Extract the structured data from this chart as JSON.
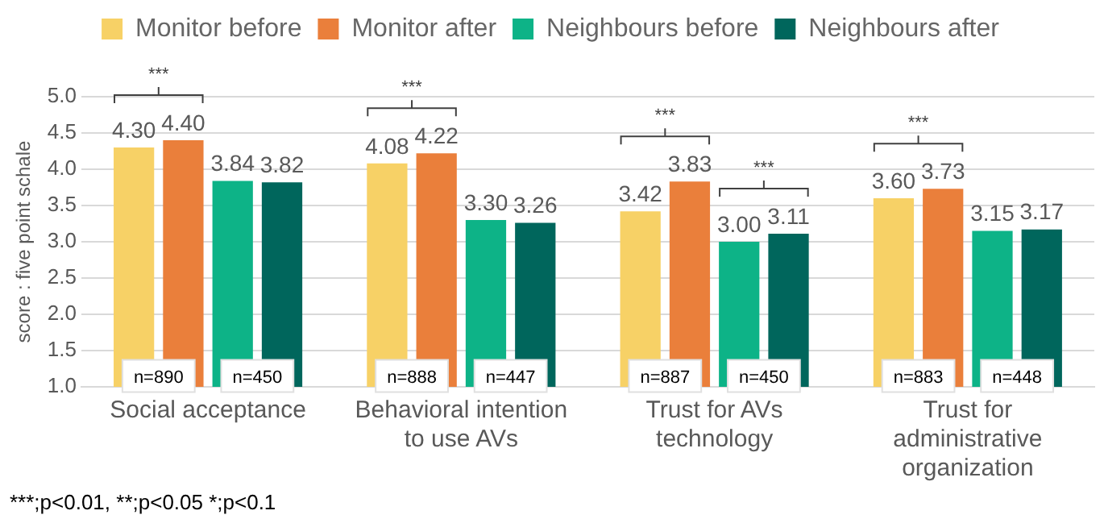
{
  "chart_data": {
    "type": "bar",
    "ylabel": "score : five point schale",
    "categories": [
      "Social acceptance",
      "Behavioral intention\nto use AVs",
      "Trust for AVs\ntechnology",
      "Trust for\nadministrative\norganization"
    ],
    "series": [
      {
        "name": "Monitor before",
        "color": "#f7d166",
        "values": [
          4.3,
          4.08,
          3.42,
          3.6
        ],
        "value_labels": [
          "4.30",
          "4.08",
          "3.42",
          "3.60"
        ]
      },
      {
        "name": "Monitor after",
        "color": "#ea7f3b",
        "values": [
          4.4,
          4.22,
          3.83,
          3.73
        ],
        "value_labels": [
          "4.40",
          "4.22",
          "3.83",
          "3.73"
        ]
      },
      {
        "name": "Neighbours before",
        "color": "#0db387",
        "values": [
          3.84,
          3.3,
          3.0,
          3.15
        ],
        "value_labels": [
          "3.84",
          "3.30",
          "3.00",
          "3.15"
        ]
      },
      {
        "name": "Neighbours after",
        "color": "#00665c",
        "values": [
          3.82,
          3.26,
          3.11,
          3.17
        ],
        "value_labels": [
          "3.82",
          "3.26",
          "3.11",
          "3.17"
        ]
      }
    ],
    "ylim": [
      1.0,
      5.0
    ],
    "yticks": [
      {
        "value": 1.0,
        "label": "1.0"
      },
      {
        "value": 1.5,
        "label": "1.5"
      },
      {
        "value": 2.0,
        "label": "2.0"
      },
      {
        "value": 2.5,
        "label": "2.5"
      },
      {
        "value": 3.0,
        "label": "3.0"
      },
      {
        "value": 3.5,
        "label": "3.5"
      },
      {
        "value": 4.0,
        "label": "4.0"
      },
      {
        "value": 4.5,
        "label": "4.5"
      },
      {
        "value": 5.0,
        "label": "5.0"
      }
    ],
    "grid": "y",
    "legend": "top",
    "annotations": [
      "***",
      "***",
      "***",
      "***",
      "***",
      {
        "text": "n=890",
        "x": "Social acceptance",
        "y": 1.15
      },
      {
        "text": "n=450",
        "x": "Social acceptance",
        "y": 1.15
      },
      {
        "text": "n=888",
        "x": "Behavioral intention\nto use AVs",
        "y": 1.15
      },
      {
        "text": "n=447",
        "x": "Behavioral intention\nto use AVs",
        "y": 1.15
      },
      {
        "text": "n=887",
        "x": "Trust for AVs\ntechnology",
        "y": 1.15
      },
      {
        "text": "n=450",
        "x": "Trust for AVs\ntechnology",
        "y": 1.15
      },
      {
        "text": "n=883",
        "x": "Trust for\nadministrative\norganization",
        "y": 1.15
      },
      {
        "text": "n=448",
        "x": "Trust for\nadministrative\norganization",
        "y": 1.15
      },
      "***;p<0.01, **;p<0.05 *;p<0.1"
    ]
  }
}
